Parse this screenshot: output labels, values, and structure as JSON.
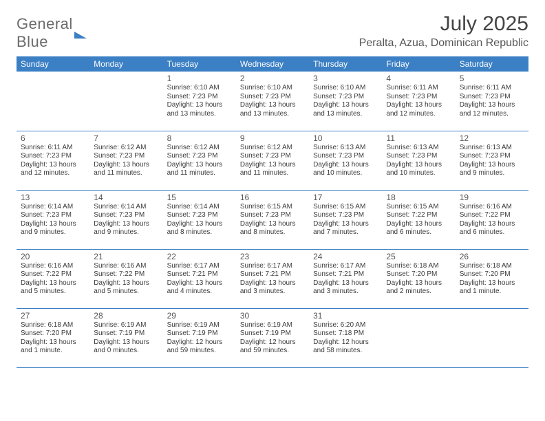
{
  "logo": {
    "word1": "General",
    "word2": "Blue"
  },
  "title": "July 2025",
  "location": "Peralta, Azua, Dominican Republic",
  "colors": {
    "header_bg": "#3b7fc4",
    "header_fg": "#ffffff",
    "rule": "#3b7fc4",
    "text": "#3a3a3a",
    "title": "#444444",
    "logo_gray": "#6b6b6b"
  },
  "weekdays": [
    "Sunday",
    "Monday",
    "Tuesday",
    "Wednesday",
    "Thursday",
    "Friday",
    "Saturday"
  ],
  "weeks": [
    [
      null,
      null,
      {
        "n": "1",
        "sr": "6:10 AM",
        "ss": "7:23 PM",
        "dl": "13 hours and 13 minutes."
      },
      {
        "n": "2",
        "sr": "6:10 AM",
        "ss": "7:23 PM",
        "dl": "13 hours and 13 minutes."
      },
      {
        "n": "3",
        "sr": "6:10 AM",
        "ss": "7:23 PM",
        "dl": "13 hours and 13 minutes."
      },
      {
        "n": "4",
        "sr": "6:11 AM",
        "ss": "7:23 PM",
        "dl": "13 hours and 12 minutes."
      },
      {
        "n": "5",
        "sr": "6:11 AM",
        "ss": "7:23 PM",
        "dl": "13 hours and 12 minutes."
      }
    ],
    [
      {
        "n": "6",
        "sr": "6:11 AM",
        "ss": "7:23 PM",
        "dl": "13 hours and 12 minutes."
      },
      {
        "n": "7",
        "sr": "6:12 AM",
        "ss": "7:23 PM",
        "dl": "13 hours and 11 minutes."
      },
      {
        "n": "8",
        "sr": "6:12 AM",
        "ss": "7:23 PM",
        "dl": "13 hours and 11 minutes."
      },
      {
        "n": "9",
        "sr": "6:12 AM",
        "ss": "7:23 PM",
        "dl": "13 hours and 11 minutes."
      },
      {
        "n": "10",
        "sr": "6:13 AM",
        "ss": "7:23 PM",
        "dl": "13 hours and 10 minutes."
      },
      {
        "n": "11",
        "sr": "6:13 AM",
        "ss": "7:23 PM",
        "dl": "13 hours and 10 minutes."
      },
      {
        "n": "12",
        "sr": "6:13 AM",
        "ss": "7:23 PM",
        "dl": "13 hours and 9 minutes."
      }
    ],
    [
      {
        "n": "13",
        "sr": "6:14 AM",
        "ss": "7:23 PM",
        "dl": "13 hours and 9 minutes."
      },
      {
        "n": "14",
        "sr": "6:14 AM",
        "ss": "7:23 PM",
        "dl": "13 hours and 9 minutes."
      },
      {
        "n": "15",
        "sr": "6:14 AM",
        "ss": "7:23 PM",
        "dl": "13 hours and 8 minutes."
      },
      {
        "n": "16",
        "sr": "6:15 AM",
        "ss": "7:23 PM",
        "dl": "13 hours and 8 minutes."
      },
      {
        "n": "17",
        "sr": "6:15 AM",
        "ss": "7:23 PM",
        "dl": "13 hours and 7 minutes."
      },
      {
        "n": "18",
        "sr": "6:15 AM",
        "ss": "7:22 PM",
        "dl": "13 hours and 6 minutes."
      },
      {
        "n": "19",
        "sr": "6:16 AM",
        "ss": "7:22 PM",
        "dl": "13 hours and 6 minutes."
      }
    ],
    [
      {
        "n": "20",
        "sr": "6:16 AM",
        "ss": "7:22 PM",
        "dl": "13 hours and 5 minutes."
      },
      {
        "n": "21",
        "sr": "6:16 AM",
        "ss": "7:22 PM",
        "dl": "13 hours and 5 minutes."
      },
      {
        "n": "22",
        "sr": "6:17 AM",
        "ss": "7:21 PM",
        "dl": "13 hours and 4 minutes."
      },
      {
        "n": "23",
        "sr": "6:17 AM",
        "ss": "7:21 PM",
        "dl": "13 hours and 3 minutes."
      },
      {
        "n": "24",
        "sr": "6:17 AM",
        "ss": "7:21 PM",
        "dl": "13 hours and 3 minutes."
      },
      {
        "n": "25",
        "sr": "6:18 AM",
        "ss": "7:20 PM",
        "dl": "13 hours and 2 minutes."
      },
      {
        "n": "26",
        "sr": "6:18 AM",
        "ss": "7:20 PM",
        "dl": "13 hours and 1 minute."
      }
    ],
    [
      {
        "n": "27",
        "sr": "6:18 AM",
        "ss": "7:20 PM",
        "dl": "13 hours and 1 minute."
      },
      {
        "n": "28",
        "sr": "6:19 AM",
        "ss": "7:19 PM",
        "dl": "13 hours and 0 minutes."
      },
      {
        "n": "29",
        "sr": "6:19 AM",
        "ss": "7:19 PM",
        "dl": "12 hours and 59 minutes."
      },
      {
        "n": "30",
        "sr": "6:19 AM",
        "ss": "7:19 PM",
        "dl": "12 hours and 59 minutes."
      },
      {
        "n": "31",
        "sr": "6:20 AM",
        "ss": "7:18 PM",
        "dl": "12 hours and 58 minutes."
      },
      null,
      null
    ]
  ],
  "labels": {
    "sunrise": "Sunrise:",
    "sunset": "Sunset:",
    "daylight": "Daylight:"
  }
}
